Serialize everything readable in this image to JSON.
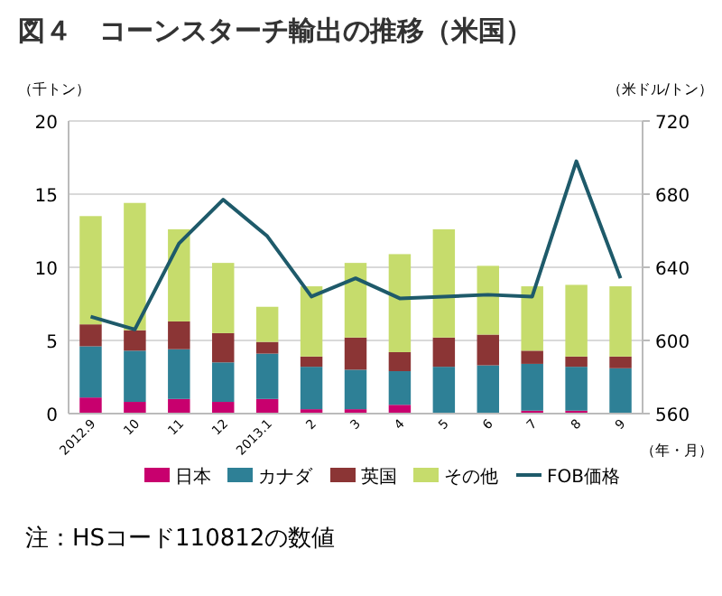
{
  "chart_data": {
    "type": "bar",
    "title": "図４　コーンスターチ輸出の推移（米国）",
    "ylabel": "（千トン）",
    "y2label": "（米ドル/トン）",
    "xlabel": "（年・月）",
    "categories": [
      "2012.9",
      "10",
      "11",
      "12",
      "2013.1",
      "2",
      "3",
      "4",
      "5",
      "6",
      "7",
      "8",
      "9"
    ],
    "stacked": true,
    "series": [
      {
        "name": "日本",
        "color": "#c8006e",
        "values": [
          1.1,
          0.8,
          1.0,
          0.8,
          1.0,
          0.3,
          0.3,
          0.6,
          0,
          0,
          0.2,
          0.2,
          0
        ]
      },
      {
        "name": "カナダ",
        "color": "#2e8096",
        "values": [
          3.5,
          3.5,
          3.4,
          2.7,
          3.1,
          2.9,
          2.7,
          2.3,
          3.2,
          3.3,
          3.2,
          3.0,
          3.1
        ]
      },
      {
        "name": "英国",
        "color": "#8b3535",
        "values": [
          1.5,
          1.4,
          1.9,
          2.0,
          0.8,
          0.7,
          2.2,
          1.3,
          2.0,
          2.1,
          0.9,
          0.7,
          0.8
        ]
      },
      {
        "name": "その他",
        "color": "#c6dc6c",
        "values": [
          7.4,
          8.7,
          6.3,
          4.8,
          2.4,
          4.8,
          5.1,
          6.7,
          7.4,
          4.7,
          4.4,
          4.9,
          4.8
        ]
      },
      {
        "name": "FOB価格",
        "type": "line",
        "axis": "y2",
        "color": "#1e5a6a",
        "values": [
          613,
          606,
          653,
          677,
          657,
          624,
          634,
          623,
          624,
          625,
          624,
          698,
          634
        ]
      }
    ],
    "ylim": [
      0,
      20
    ],
    "yticks": [
      0,
      5,
      10,
      15,
      20
    ],
    "y2lim": [
      560,
      720
    ],
    "y2ticks": [
      560,
      600,
      640,
      680,
      720
    ],
    "grid": "y",
    "legend": "bottom",
    "annotations": [
      "注：HSコード110812の数値"
    ]
  }
}
